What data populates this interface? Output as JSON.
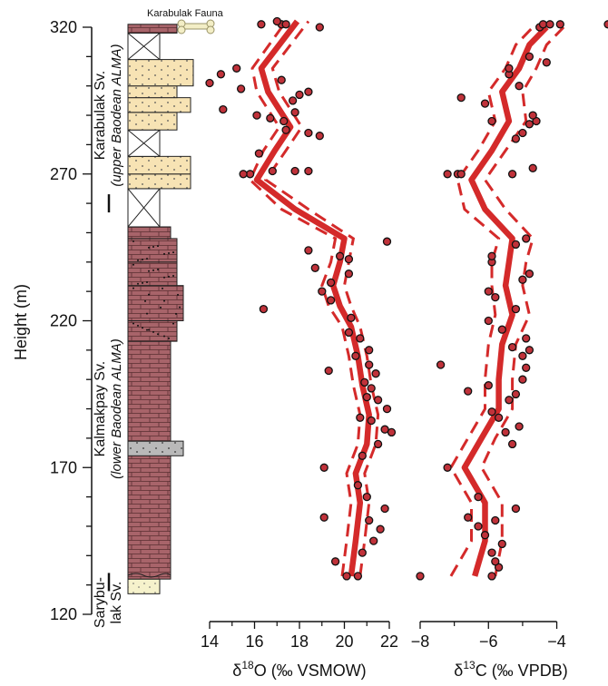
{
  "chart_data": [
    {
      "type": "scatter",
      "xlabel": "δ¹⁸O (‰ VSMOW)",
      "xlabel_main": "δ",
      "xlabel_sup": "18",
      "xlabel_rest": "O (‰ VSMOW)",
      "xlim": [
        14,
        22
      ],
      "xticks": [
        "14",
        "16",
        "18",
        "20",
        "22"
      ],
      "ylabel": "Height (m)",
      "ylim": [
        120,
        320
      ],
      "yticks": [
        "120",
        "170",
        "220",
        "270",
        "320"
      ],
      "trend_mean": [
        [
          20.3,
          133
        ],
        [
          20.5,
          145
        ],
        [
          20.7,
          158
        ],
        [
          20.5,
          168
        ],
        [
          21.0,
          178
        ],
        [
          21.1,
          188
        ],
        [
          20.8,
          198
        ],
        [
          20.6,
          208
        ],
        [
          20.3,
          218
        ],
        [
          19.8,
          225
        ],
        [
          19.5,
          232
        ],
        [
          19.8,
          240
        ],
        [
          20.0,
          248
        ],
        [
          17.8,
          258
        ],
        [
          16.1,
          268
        ],
        [
          16.9,
          278
        ],
        [
          17.6,
          286
        ],
        [
          16.6,
          298
        ],
        [
          16.3,
          306
        ],
        [
          17.9,
          322
        ]
      ],
      "trend_lower": [
        [
          19.9,
          133
        ],
        [
          20.1,
          145
        ],
        [
          20.3,
          158
        ],
        [
          20.1,
          168
        ],
        [
          20.6,
          178
        ],
        [
          20.7,
          188
        ],
        [
          20.4,
          198
        ],
        [
          20.2,
          208
        ],
        [
          19.9,
          218
        ],
        [
          19.3,
          225
        ],
        [
          19.0,
          232
        ],
        [
          19.4,
          240
        ],
        [
          19.6,
          248
        ],
        [
          17.2,
          258
        ],
        [
          15.8,
          268
        ],
        [
          16.4,
          278
        ],
        [
          17.1,
          286
        ],
        [
          16.1,
          298
        ],
        [
          15.9,
          306
        ],
        [
          17.4,
          322
        ]
      ],
      "trend_upper": [
        [
          20.7,
          133
        ],
        [
          20.9,
          145
        ],
        [
          21.1,
          158
        ],
        [
          20.9,
          168
        ],
        [
          21.4,
          178
        ],
        [
          21.5,
          188
        ],
        [
          21.2,
          198
        ],
        [
          21.0,
          208
        ],
        [
          20.7,
          218
        ],
        [
          20.3,
          225
        ],
        [
          20.0,
          232
        ],
        [
          20.2,
          240
        ],
        [
          20.4,
          248
        ],
        [
          18.4,
          258
        ],
        [
          16.5,
          268
        ],
        [
          17.4,
          278
        ],
        [
          18.1,
          286
        ],
        [
          17.1,
          298
        ],
        [
          16.8,
          306
        ],
        [
          18.4,
          322
        ]
      ],
      "points": [
        [
          20.1,
          133
        ],
        [
          20.6,
          133
        ],
        [
          19.6,
          138
        ],
        [
          20.8,
          141
        ],
        [
          21.3,
          145
        ],
        [
          21.6,
          149
        ],
        [
          21.1,
          152
        ],
        [
          19.1,
          153
        ],
        [
          21.8,
          156
        ],
        [
          21.0,
          160
        ],
        [
          20.6,
          164
        ],
        [
          19.1,
          170
        ],
        [
          20.8,
          174
        ],
        [
          21.5,
          178
        ],
        [
          22.1,
          182
        ],
        [
          21.8,
          183
        ],
        [
          21.2,
          186
        ],
        [
          20.7,
          187
        ],
        [
          21.9,
          190
        ],
        [
          21.5,
          193
        ],
        [
          21.0,
          194
        ],
        [
          21.2,
          197
        ],
        [
          20.9,
          199
        ],
        [
          21.4,
          202
        ],
        [
          19.3,
          203
        ],
        [
          21.1,
          205
        ],
        [
          20.5,
          208
        ],
        [
          21.1,
          210
        ],
        [
          20.7,
          214
        ],
        [
          20.2,
          216
        ],
        [
          20.3,
          221
        ],
        [
          16.4,
          224
        ],
        [
          19.4,
          227
        ],
        [
          19.0,
          230
        ],
        [
          19.4,
          233
        ],
        [
          20.2,
          236
        ],
        [
          18.7,
          238
        ],
        [
          20.2,
          241
        ],
        [
          19.8,
          242
        ],
        [
          18.4,
          244
        ],
        [
          21.9,
          247
        ],
        [
          15.8,
          270
        ],
        [
          15.5,
          270
        ],
        [
          16.8,
          271
        ],
        [
          17.8,
          271
        ],
        [
          18.4,
          271
        ],
        [
          16.2,
          277
        ],
        [
          18.9,
          283
        ],
        [
          18.4,
          284
        ],
        [
          17.4,
          285
        ],
        [
          17.3,
          288
        ],
        [
          16.7,
          289
        ],
        [
          16.1,
          290
        ],
        [
          17.8,
          291
        ],
        [
          14.6,
          292
        ],
        [
          17.7,
          295
        ],
        [
          18.0,
          297
        ],
        [
          18.4,
          298
        ],
        [
          15.4,
          299
        ],
        [
          14.0,
          301
        ],
        [
          17.2,
          302
        ],
        [
          14.5,
          304
        ],
        [
          15.2,
          306
        ],
        [
          18.9,
          320
        ],
        [
          16.3,
          321
        ],
        [
          17.2,
          321
        ],
        [
          17.4,
          321
        ],
        [
          17.0,
          322
        ]
      ]
    },
    {
      "type": "scatter",
      "xlabel": "δ¹³C (‰ VPDB)",
      "xlabel_main": "δ",
      "xlabel_sup": "13",
      "xlabel_rest": "C (‰ VPDB)",
      "xlim": [
        -8,
        -2.5
      ],
      "xticks": [
        "−8",
        "−6",
        "−4"
      ],
      "ylim": [
        120,
        320
      ],
      "trend_mean": [
        [
          -6.4,
          133
        ],
        [
          -6.1,
          145
        ],
        [
          -6.1,
          158
        ],
        [
          -6.7,
          170
        ],
        [
          -6.2,
          180
        ],
        [
          -5.7,
          190
        ],
        [
          -5.7,
          200
        ],
        [
          -5.6,
          212
        ],
        [
          -5.3,
          222
        ],
        [
          -5.5,
          232
        ],
        [
          -5.4,
          240
        ],
        [
          -5.3,
          248
        ],
        [
          -6.1,
          258
        ],
        [
          -6.5,
          268
        ],
        [
          -5.9,
          278
        ],
        [
          -5.4,
          288
        ],
        [
          -5.6,
          298
        ],
        [
          -5.1,
          306
        ],
        [
          -4.8,
          314
        ],
        [
          -4.3,
          320
        ]
      ],
      "trend_lower": [
        [
          -7.1,
          133
        ],
        [
          -6.5,
          145
        ],
        [
          -6.5,
          158
        ],
        [
          -7.1,
          170
        ],
        [
          -6.6,
          180
        ],
        [
          -6.1,
          190
        ],
        [
          -6.1,
          200
        ],
        [
          -6.0,
          212
        ],
        [
          -5.8,
          222
        ],
        [
          -5.9,
          232
        ],
        [
          -5.9,
          240
        ],
        [
          -5.7,
          248
        ],
        [
          -6.7,
          258
        ],
        [
          -6.9,
          268
        ],
        [
          -6.3,
          278
        ],
        [
          -5.8,
          288
        ],
        [
          -6.0,
          298
        ],
        [
          -5.5,
          306
        ],
        [
          -5.2,
          314
        ],
        [
          -4.7,
          320
        ]
      ],
      "trend_upper": [
        [
          -5.8,
          133
        ],
        [
          -5.6,
          145
        ],
        [
          -5.6,
          158
        ],
        [
          -6.2,
          170
        ],
        [
          -5.8,
          180
        ],
        [
          -5.3,
          190
        ],
        [
          -5.3,
          200
        ],
        [
          -5.2,
          212
        ],
        [
          -4.8,
          222
        ],
        [
          -5.0,
          232
        ],
        [
          -4.9,
          240
        ],
        [
          -4.7,
          248
        ],
        [
          -5.5,
          258
        ],
        [
          -6.1,
          268
        ],
        [
          -5.5,
          278
        ],
        [
          -4.9,
          288
        ],
        [
          -5.0,
          298
        ],
        [
          -4.6,
          306
        ],
        [
          -4.3,
          314
        ],
        [
          -3.8,
          320
        ]
      ],
      "points": [
        [
          -8.0,
          133
        ],
        [
          -5.9,
          133
        ],
        [
          -5.7,
          136
        ],
        [
          -5.8,
          138
        ],
        [
          -5.9,
          141
        ],
        [
          -5.6,
          144
        ],
        [
          -6.1,
          147
        ],
        [
          -6.3,
          150
        ],
        [
          -5.8,
          152
        ],
        [
          -6.6,
          153
        ],
        [
          -5.2,
          156
        ],
        [
          -6.3,
          160
        ],
        [
          -7.2,
          170
        ],
        [
          -5.3,
          178
        ],
        [
          -5.5,
          182
        ],
        [
          -5.1,
          184
        ],
        [
          -5.7,
          187
        ],
        [
          -5.9,
          189
        ],
        [
          -5.4,
          193
        ],
        [
          -5.2,
          195
        ],
        [
          -6.6,
          196
        ],
        [
          -6.0,
          198
        ],
        [
          -5.0,
          200
        ],
        [
          -4.9,
          204
        ],
        [
          -7.4,
          205
        ],
        [
          -5.0,
          208
        ],
        [
          -4.8,
          210
        ],
        [
          -5.3,
          211
        ],
        [
          -4.9,
          214
        ],
        [
          -5.6,
          217
        ],
        [
          -6.0,
          220
        ],
        [
          -5.2,
          224
        ],
        [
          -5.8,
          228
        ],
        [
          -6.0,
          230
        ],
        [
          -5.0,
          234
        ],
        [
          -4.8,
          236
        ],
        [
          -5.9,
          240
        ],
        [
          -5.9,
          242
        ],
        [
          -5.2,
          246
        ],
        [
          -4.9,
          248
        ],
        [
          -7.2,
          270
        ],
        [
          -6.9,
          270
        ],
        [
          -6.8,
          270
        ],
        [
          -5.3,
          270
        ],
        [
          -4.7,
          272
        ],
        [
          -5.2,
          282
        ],
        [
          -5.0,
          284
        ],
        [
          -4.8,
          287
        ],
        [
          -5.9,
          288
        ],
        [
          -4.6,
          288
        ],
        [
          -4.7,
          290
        ],
        [
          -6.1,
          294
        ],
        [
          -6.8,
          296
        ],
        [
          -5.1,
          300
        ],
        [
          -5.4,
          304
        ],
        [
          -5.4,
          306
        ],
        [
          -4.3,
          308
        ],
        [
          -4.8,
          310
        ],
        [
          -4.5,
          320
        ],
        [
          -4.4,
          321
        ],
        [
          -4.2,
          321
        ],
        [
          -3.9,
          321
        ],
        [
          -2.5,
          321
        ]
      ]
    }
  ],
  "stratigraphy": {
    "units": [
      {
        "line1": "Karabulak Sv.",
        "line2": "(upper Baodean ALMA)"
      },
      {
        "line1": "Kalmakpay Sv.",
        "line2": "(lower Baodean ALMA)"
      },
      {
        "line1": "Sarybu-",
        "line2": "lak Sv."
      }
    ],
    "fauna_label": "Karabulak Fauna",
    "colors": {
      "mudstone": "#a8646a",
      "sandstone": "#f7e3b4",
      "conglomerate": "#f7e3b4",
      "grey_bed": "#b9b9b9",
      "pale_sand": "#f6f2cc",
      "trend_line": "#d42a2a",
      "point_fill": "#c0323a"
    }
  }
}
